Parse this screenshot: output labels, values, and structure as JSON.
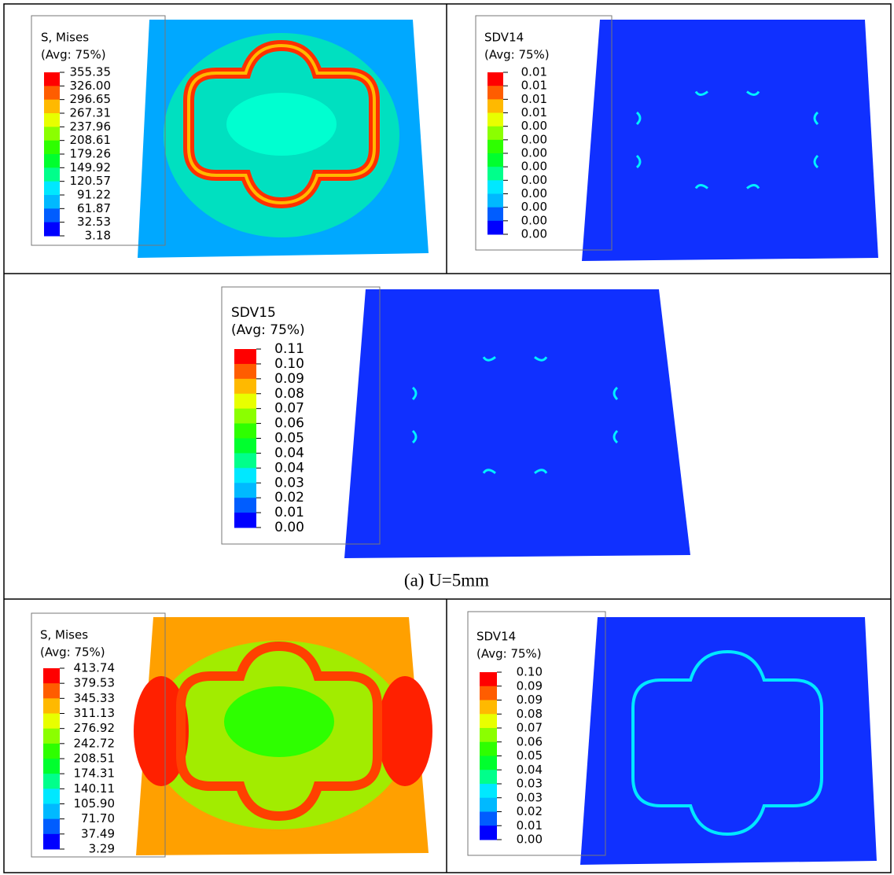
{
  "panels": [
    {
      "title": "S, Mises",
      "subtitle": "(Avg: 75%)",
      "labels": [
        "355.35",
        "326.00",
        "296.65",
        "267.31",
        "237.96",
        "208.61",
        "179.26",
        "149.92",
        "120.57",
        "91.22",
        "61.87",
        "32.53",
        "3.18"
      ]
    },
    {
      "title": "SDV14",
      "subtitle": "(Avg: 75%)",
      "labels": [
        "0.01",
        "0.01",
        "0.01",
        "0.01",
        "0.00",
        "0.00",
        "0.00",
        "0.00",
        "0.00",
        "0.00",
        "0.00",
        "0.00",
        "0.00"
      ]
    },
    {
      "title": "SDV15",
      "subtitle": "(Avg: 75%)",
      "labels": [
        "0.11",
        "0.10",
        "0.09",
        "0.08",
        "0.07",
        "0.06",
        "0.05",
        "0.04",
        "0.04",
        "0.03",
        "0.02",
        "0.01",
        "0.00"
      ]
    },
    {
      "title": "S, Mises",
      "subtitle": "(Avg: 75%)",
      "labels": [
        "413.74",
        "379.53",
        "345.33",
        "311.13",
        "276.92",
        "242.72",
        "208.51",
        "174.31",
        "140.11",
        "105.90",
        "71.70",
        "37.49",
        "3.29"
      ]
    },
    {
      "title": "SDV14",
      "subtitle": "(Avg: 75%)",
      "labels": [
        "0.10",
        "0.09",
        "0.09",
        "0.08",
        "0.07",
        "0.06",
        "0.05",
        "0.04",
        "0.03",
        "0.03",
        "0.02",
        "0.01",
        "0.00"
      ]
    }
  ],
  "caption": "(a) U=5mm"
}
